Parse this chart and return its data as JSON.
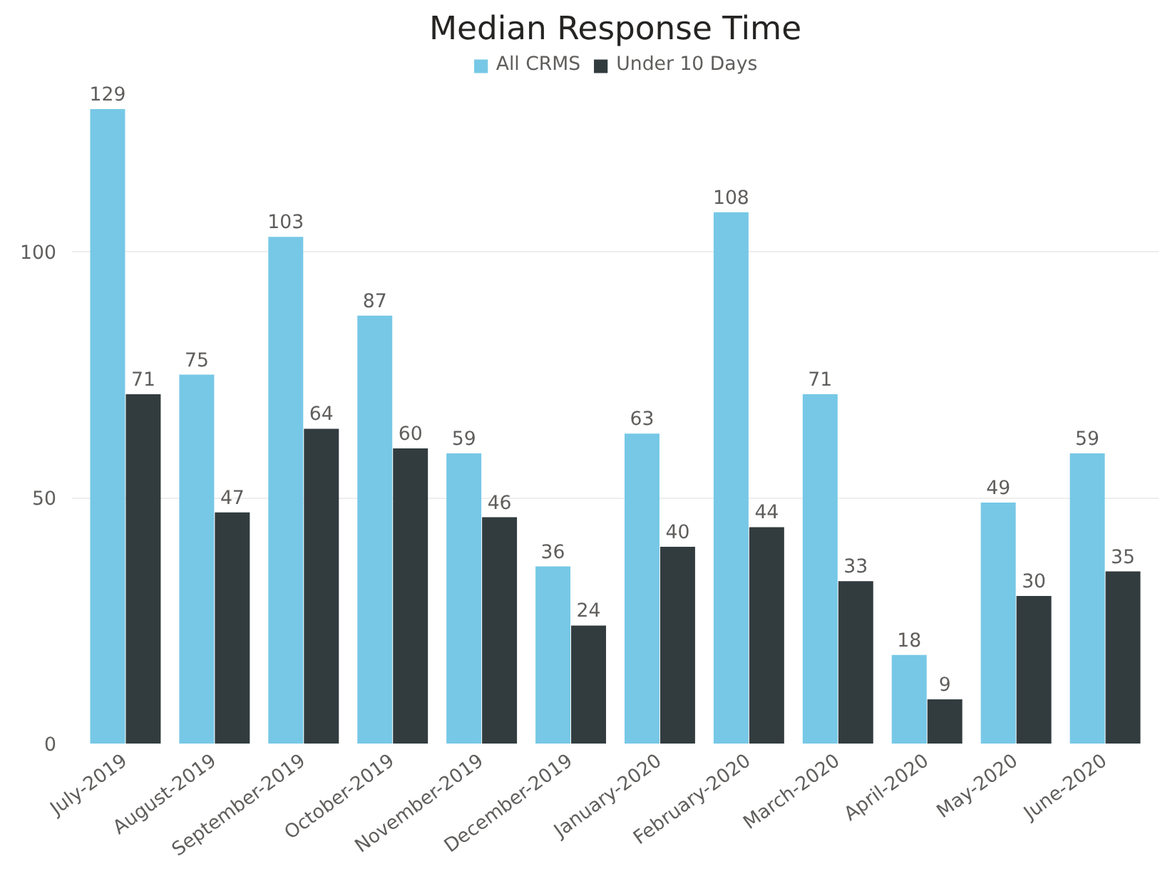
{
  "chart_data": {
    "type": "bar",
    "title": "Median Response Time",
    "categories": [
      "July-2019",
      "August-2019",
      "September-2019",
      "October-2019",
      "November-2019",
      "December-2019",
      "January-2020",
      "February-2020",
      "March-2020",
      "April-2020",
      "May-2020",
      "June-2020"
    ],
    "series": [
      {
        "name": "All CRMS",
        "color": "#76c8e6",
        "values": [
          129,
          75,
          103,
          87,
          59,
          36,
          63,
          108,
          71,
          18,
          49,
          59
        ]
      },
      {
        "name": "Under 10 Days",
        "color": "#323c3f",
        "values": [
          71,
          47,
          64,
          60,
          46,
          24,
          40,
          44,
          33,
          9,
          30,
          35
        ]
      }
    ],
    "ylim": [
      0,
      140
    ],
    "yticks": [
      0,
      50,
      100
    ],
    "grid": "y",
    "legend": "top",
    "data_labels": true
  }
}
